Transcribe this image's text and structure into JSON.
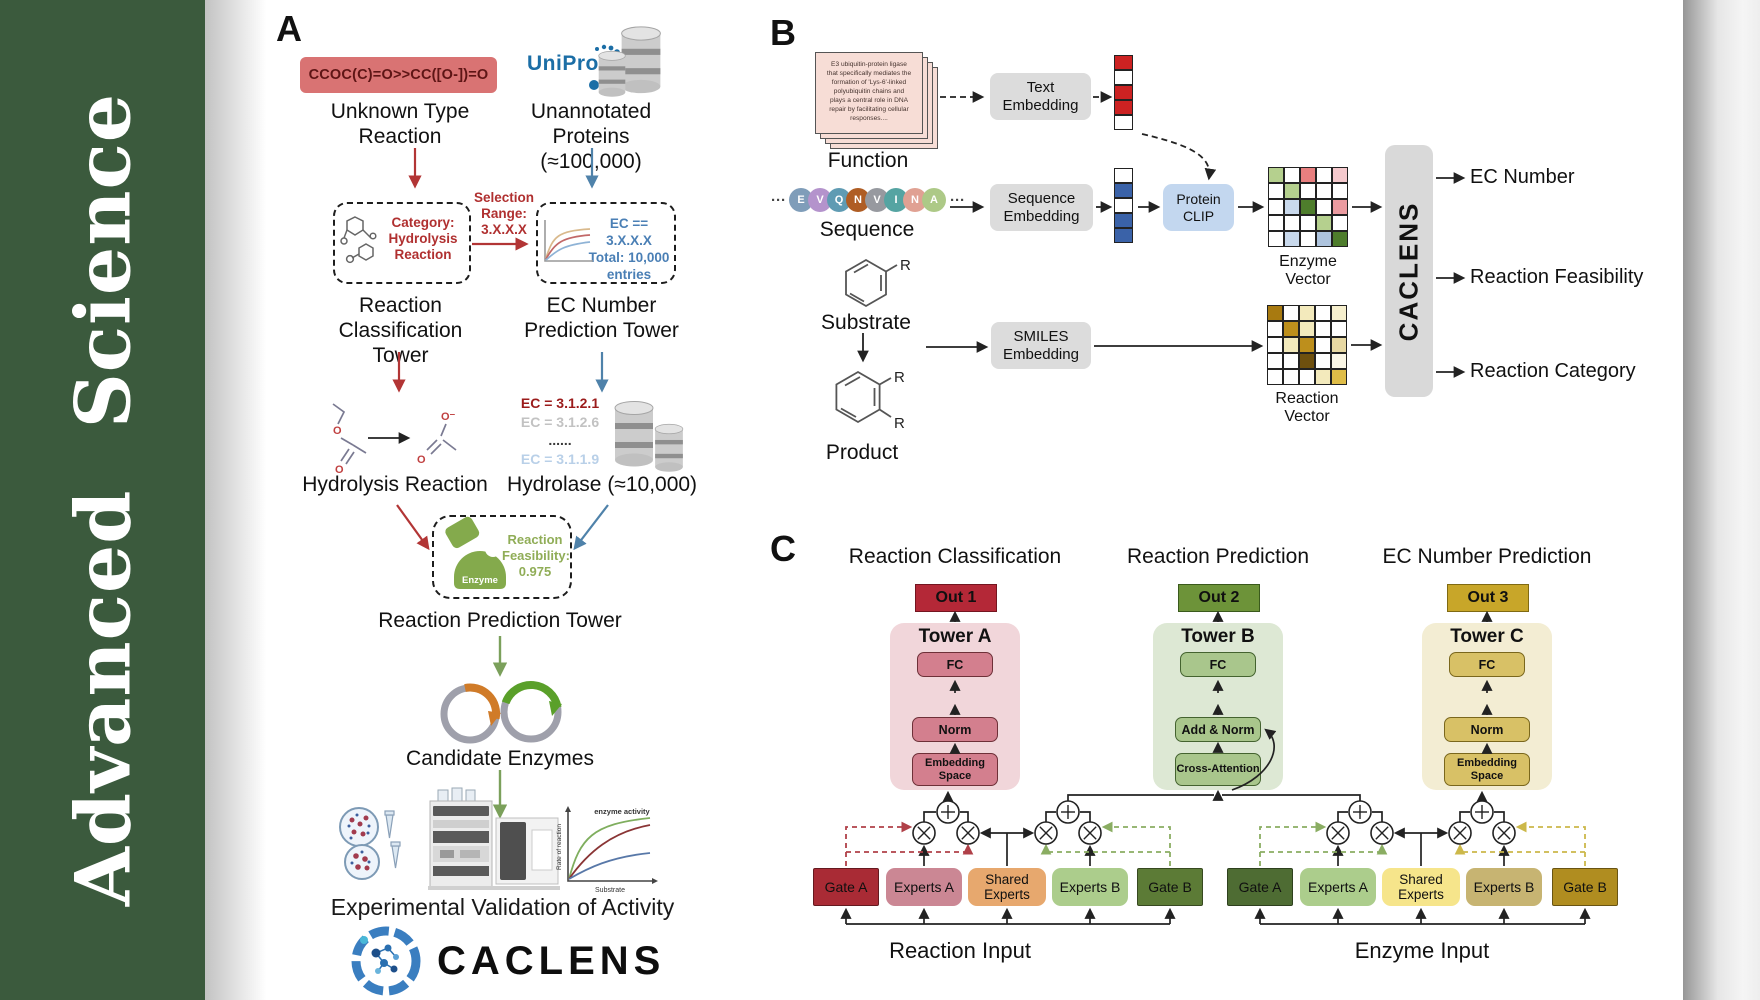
{
  "banner": {
    "text": "Advanced  Science",
    "bg": "#3b5a3d",
    "fg": "#ffffff"
  },
  "panel_a": {
    "label": "A",
    "smiles": "CCOC(C)=O>>CC([O-])=O",
    "smiles_bg": "#d97373",
    "unknown_type": [
      "Unknown Type",
      "Reaction"
    ],
    "uniprot": "UniProt",
    "unannotated": [
      "Unannotated",
      "Proteins (≈100,000)"
    ],
    "selection": [
      "Selection",
      "Range:",
      "3.X.X.X"
    ],
    "category": [
      "Category:",
      "Hydrolysis",
      "Reaction"
    ],
    "ec_filter": [
      "EC == 3.X.X.X",
      "Total: 10,000",
      "entries"
    ],
    "tower_classification": [
      "Reaction",
      "Classification Tower"
    ],
    "tower_ec": [
      "EC Number",
      "Prediction Tower"
    ],
    "ec_list": [
      {
        "text": "EC = 3.1.2.1",
        "color": "#9b1b1b"
      },
      {
        "text": "EC = 3.1.2.6",
        "color": "#c2c2c2"
      },
      {
        "text": "......",
        "color": "#3a3a3a"
      },
      {
        "text": "EC = 3.1.1.9",
        "color": "#b9d0e8"
      }
    ],
    "hydrolysis": "Hydrolysis Reaction",
    "hydrolase": "Hydrolase (≈10,000)",
    "enzyme_badge": "Enzyme",
    "feasibility": [
      "Reaction",
      "Feasibility:",
      "0.975"
    ],
    "tower_prediction": "Reaction Prediction Tower",
    "candidate": "Candidate Enzymes",
    "activity_plot": {
      "annotation": "enzyme activity",
      "ylabel": "Rate of reaction",
      "xlabel": "Substrate"
    },
    "validation": "Experimental Validation of Activity",
    "logo": "CACLENS"
  },
  "panel_b": {
    "label": "B",
    "function_card_lines": [
      "E3 ubiquitin-protein ligase",
      "that specifically mediates the",
      "formation of 'Lys-6'-linked",
      "polyubiquitin chains and",
      "plays a central role in DNA",
      "repair by facilitating cellular",
      "responses...."
    ],
    "function": "Function",
    "ellipsis": "···",
    "sequence_residues": [
      {
        "letter": "E",
        "color": "#7f9db9"
      },
      {
        "letter": "V",
        "color": "#b493cc"
      },
      {
        "letter": "Q",
        "color": "#5f9bb3"
      },
      {
        "letter": "N",
        "color": "#af5d24"
      },
      {
        "letter": "V",
        "color": "#97999f"
      },
      {
        "letter": "I",
        "color": "#55a4a2"
      },
      {
        "letter": "N",
        "color": "#e0a193"
      },
      {
        "letter": "A",
        "color": "#adc987"
      }
    ],
    "sequence": "Sequence",
    "substrate": "Substrate",
    "product": "Product",
    "r_label": "R",
    "text_embedding": [
      "Text",
      "Embedding"
    ],
    "sequence_embedding": [
      "Sequence",
      "Embedding"
    ],
    "smiles_embedding": [
      "SMILES",
      "Embedding"
    ],
    "protein_clip": [
      "Protein",
      "CLIP"
    ],
    "text_vector_cells": [
      "#cc2222",
      "#ffffff",
      "#cc2222",
      "#cc2222",
      "#ffffff"
    ],
    "seq_vector_cells": [
      "#ffffff",
      "#3a62a8",
      "#ffffff",
      "#3a62a8",
      "#3a62a8"
    ],
    "enzyme_matrix": [
      [
        "#b5d08e",
        "#ffffff",
        "#e87f7f",
        "#ffffff",
        "#f5c9cd"
      ],
      [
        "#ffffff",
        "#b5d08e",
        "#ffffff",
        "#ffffff",
        "#ffffff"
      ],
      [
        "#ffffff",
        "#c9d9ec",
        "#4e7d2c",
        "#ffffff",
        "#eb9ba0"
      ],
      [
        "#ffffff",
        "#ffffff",
        "#ffffff",
        "#b5d08e",
        "#ffffff"
      ],
      [
        "#ffffff",
        "#c9d9ec",
        "#ffffff",
        "#aec4de",
        "#4e7d2c"
      ]
    ],
    "reaction_matrix": [
      [
        "#a87a10",
        "#ffffff",
        "#f3eabc",
        "#ffffff",
        "#f6efcd"
      ],
      [
        "#ffffff",
        "#bd8f1c",
        "#f3eabc",
        "#ffffff",
        "#ffffff"
      ],
      [
        "#ffffff",
        "#f3eabc",
        "#bd8f1c",
        "#ffffff",
        "#e7d8a2"
      ],
      [
        "#ffffff",
        "#ffffff",
        "#6e500e",
        "#ffffff",
        "#fbf7e6"
      ],
      [
        "#ffffff",
        "#ffffff",
        "#ffffff",
        "#f3eabc",
        "#dfbd48"
      ]
    ],
    "enzyme_vector": "Enzyme Vector",
    "reaction_vector": "Reaction Vector",
    "caclens": "CACLENS",
    "outputs": [
      "EC Number",
      "Reaction Feasibility",
      "Reaction Category"
    ]
  },
  "panel_c": {
    "label": "C",
    "dots": "......",
    "columns": [
      {
        "title": "Reaction Classification",
        "out": "Out 1",
        "tower": "Tower A",
        "blocks": [
          "FC",
          "Norm",
          "Embedding Space"
        ],
        "colors": {
          "container": "#f1d6da",
          "box": "#d37f8e",
          "box_border": "#6e3038",
          "out": "#b42837",
          "out_border": "#741520"
        }
      },
      {
        "title": "Reaction Prediction",
        "out": "Out 2",
        "tower": "Tower B",
        "blocks": [
          "FC",
          "Add & Norm",
          "Cross-Attention"
        ],
        "colors": {
          "container": "#dde8d4",
          "box": "#a9c68c",
          "box_border": "#44632f",
          "out": "#6d9339",
          "out_border": "#3a5a1c"
        }
      },
      {
        "title": "EC Number Prediction",
        "out": "Out 3",
        "tower": "Tower C",
        "blocks": [
          "FC",
          "Norm",
          "Embedding Space"
        ],
        "colors": {
          "container": "#f3edd3",
          "box": "#d8c166",
          "box_border": "#7a671c",
          "out": "#c8a629",
          "out_border": "#806a12"
        }
      }
    ],
    "moe_groups": [
      {
        "input_label": "Reaction Input",
        "boxes": [
          {
            "label": "Gate A",
            "fill": "#a92b35"
          },
          {
            "label": "Experts A",
            "fill": "#cb8794"
          },
          {
            "label": "Shared Experts",
            "fill": "#e7a86e"
          },
          {
            "label": "Experts B",
            "fill": "#accd8c"
          },
          {
            "label": "Gate B",
            "fill": "#5c7b36"
          }
        ]
      },
      {
        "input_label": "Enzyme Input",
        "boxes": [
          {
            "label": "Gate A",
            "fill": "#4e6c33"
          },
          {
            "label": "Experts A",
            "fill": "#accd8c"
          },
          {
            "label": "Shared Experts",
            "fill": "#f6e58b"
          },
          {
            "label": "Experts B",
            "fill": "#c7b472"
          },
          {
            "label": "Gate B",
            "fill": "#b08d20"
          }
        ]
      }
    ],
    "wire_colors": {
      "gate_a_left": "#b04048",
      "gate_b_left": "#8aad62",
      "gate_a_right": "#8aad62",
      "gate_b_right": "#ccb84a"
    }
  }
}
